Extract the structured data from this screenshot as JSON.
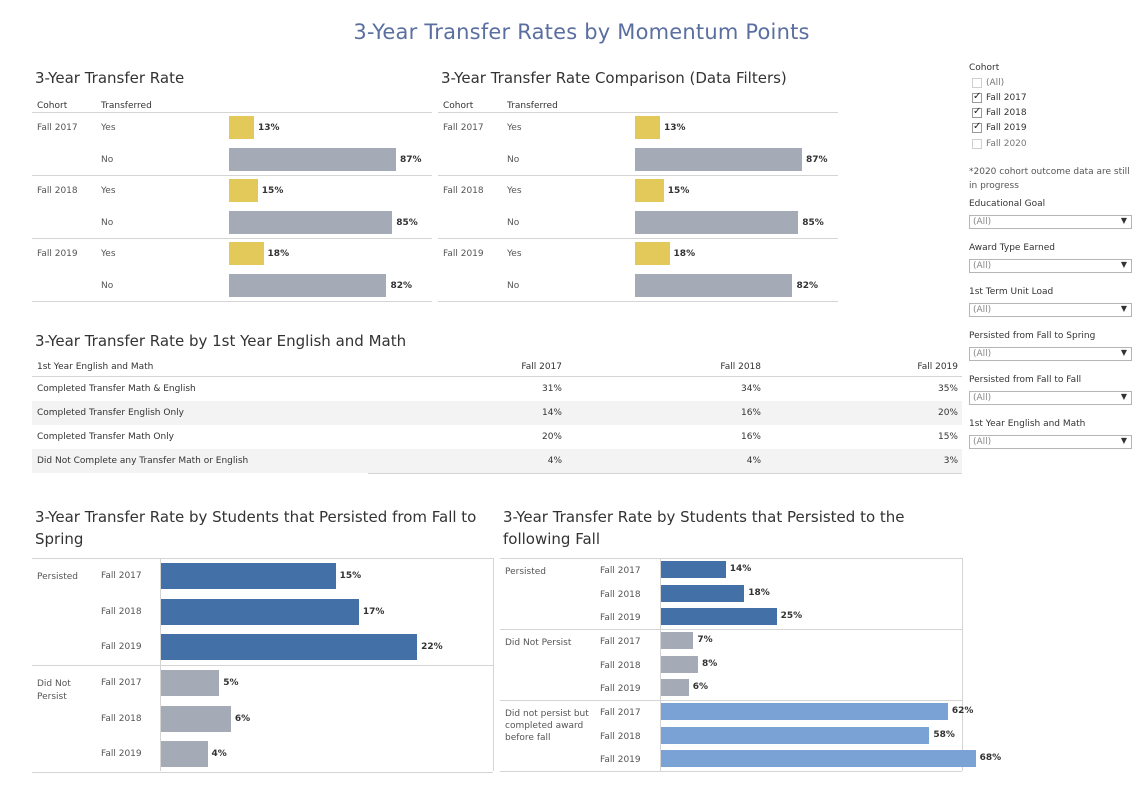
{
  "page_title": "3-Year Transfer Rates by Momentum Points",
  "colors": {
    "yes": "#e2c95a",
    "no": "#a5aab7",
    "blue_dark": "#4470a8",
    "grey": "#a5aab7",
    "blue_light": "#7aa2d4",
    "title": "#5a6fa0"
  },
  "chart_data": [
    {
      "id": "transfer_rate",
      "type": "bar",
      "title": "3-Year Transfer Rate",
      "orientation": "horizontal",
      "column_headers": [
        "Cohort",
        "Transferred"
      ],
      "groups": [
        {
          "name": "Fall 2017",
          "rows": [
            {
              "label": "Yes",
              "value": 13,
              "text": "13%"
            },
            {
              "label": "No",
              "value": 87,
              "text": "87%"
            }
          ]
        },
        {
          "name": "Fall 2018",
          "rows": [
            {
              "label": "Yes",
              "value": 15,
              "text": "15%"
            },
            {
              "label": "No",
              "value": 85,
              "text": "85%"
            }
          ]
        },
        {
          "name": "Fall 2019",
          "rows": [
            {
              "label": "Yes",
              "value": 18,
              "text": "18%"
            },
            {
              "label": "No",
              "value": 82,
              "text": "82%"
            }
          ]
        }
      ],
      "xlim": [
        0,
        100
      ]
    },
    {
      "id": "transfer_rate_comparison",
      "type": "bar",
      "title": "3-Year Transfer Rate Comparison (Data Filters)",
      "orientation": "horizontal",
      "column_headers": [
        "Cohort",
        "Transferred"
      ],
      "groups": [
        {
          "name": "Fall 2017",
          "rows": [
            {
              "label": "Yes",
              "value": 13,
              "text": "13%"
            },
            {
              "label": "No",
              "value": 87,
              "text": "87%"
            }
          ]
        },
        {
          "name": "Fall 2018",
          "rows": [
            {
              "label": "Yes",
              "value": 15,
              "text": "15%"
            },
            {
              "label": "No",
              "value": 85,
              "text": "85%"
            }
          ]
        },
        {
          "name": "Fall 2019",
          "rows": [
            {
              "label": "Yes",
              "value": 18,
              "text": "18%"
            },
            {
              "label": "No",
              "value": 82,
              "text": "82%"
            }
          ]
        }
      ],
      "xlim": [
        0,
        100
      ]
    },
    {
      "id": "english_math",
      "type": "table",
      "title": "3-Year Transfer Rate by 1st Year English and Math",
      "columns": [
        "1st Year English and Math",
        "Fall 2017",
        "Fall 2018",
        "Fall 2019"
      ],
      "rows": [
        [
          "Completed Transfer Math & English",
          "31%",
          "34%",
          "35%"
        ],
        [
          "Completed Transfer English Only",
          "14%",
          "16%",
          "20%"
        ],
        [
          "Completed Transfer Math Only",
          "20%",
          "16%",
          "15%"
        ],
        [
          "Did Not Complete any Transfer Math or English",
          "4%",
          "4%",
          "3%"
        ]
      ]
    },
    {
      "id": "persist_spring",
      "type": "bar",
      "title": "3-Year Transfer Rate by Students that Persisted from Fall to Spring",
      "orientation": "horizontal",
      "groups": [
        {
          "name": "Persisted",
          "rows": [
            {
              "label": "Fall 2017",
              "value": 15,
              "text": "15%"
            },
            {
              "label": "Fall 2018",
              "value": 17,
              "text": "17%"
            },
            {
              "label": "Fall 2019",
              "value": 22,
              "text": "22%"
            }
          ]
        },
        {
          "name": "Did Not Persist",
          "rows": [
            {
              "label": "Fall 2017",
              "value": 5,
              "text": "5%"
            },
            {
              "label": "Fall 2018",
              "value": 6,
              "text": "6%"
            },
            {
              "label": "Fall 2019",
              "value": 4,
              "text": "4%"
            }
          ]
        }
      ],
      "xlim": [
        0,
        25
      ]
    },
    {
      "id": "persist_fall",
      "type": "bar",
      "title": "3-Year Transfer Rate by Students that Persisted to the following Fall",
      "orientation": "horizontal",
      "groups": [
        {
          "name": "Persisted",
          "rows": [
            {
              "label": "Fall 2017",
              "value": 14,
              "text": "14%"
            },
            {
              "label": "Fall 2018",
              "value": 18,
              "text": "18%"
            },
            {
              "label": "Fall 2019",
              "value": 25,
              "text": "25%"
            }
          ]
        },
        {
          "name": "Did Not Persist",
          "rows": [
            {
              "label": "Fall 2017",
              "value": 7,
              "text": "7%"
            },
            {
              "label": "Fall 2018",
              "value": 8,
              "text": "8%"
            },
            {
              "label": "Fall 2019",
              "value": 6,
              "text": "6%"
            }
          ]
        },
        {
          "name": "Did not persist but completed award before fall",
          "rows": [
            {
              "label": "Fall 2017",
              "value": 62,
              "text": "62%"
            },
            {
              "label": "Fall 2018",
              "value": 58,
              "text": "58%"
            },
            {
              "label": "Fall 2019",
              "value": 68,
              "text": "68%"
            }
          ]
        }
      ],
      "xlim": [
        0,
        75
      ]
    }
  ],
  "filters": {
    "cohort": {
      "title": "Cohort",
      "options": [
        {
          "label": "(All)",
          "checked": false
        },
        {
          "label": "Fall 2017",
          "checked": true
        },
        {
          "label": "Fall 2018",
          "checked": true
        },
        {
          "label": "Fall 2019",
          "checked": true
        },
        {
          "label": "Fall 2020",
          "checked": false
        }
      ],
      "note": "*2020 cohort outcome data are still in progress"
    },
    "dropdowns": [
      {
        "title": "Educational Goal",
        "value": "(All)"
      },
      {
        "title": "Award Type Earned",
        "value": "(All)"
      },
      {
        "title": "1st Term Unit Load",
        "value": "(All)"
      },
      {
        "title": "Persisted from Fall to Spring",
        "value": "(All)"
      },
      {
        "title": "Persisted from Fall to Fall",
        "value": "(All)"
      },
      {
        "title": "1st Year English and Math",
        "value": "(All)"
      }
    ]
  }
}
